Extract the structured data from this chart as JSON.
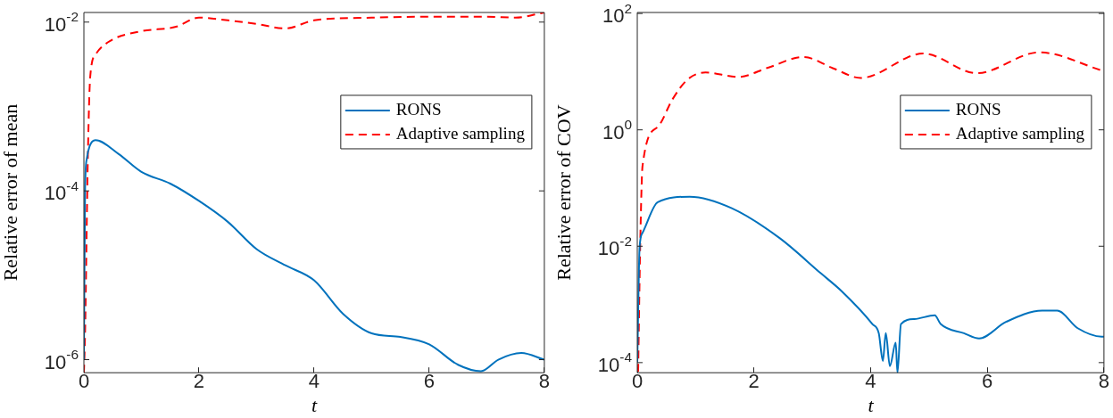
{
  "chart_data": [
    {
      "type": "line",
      "xlabel": "t",
      "ylabel": "Relative error of mean",
      "log": "y",
      "grid": false,
      "legend": "right",
      "marker": "none",
      "xlim": [
        0,
        8
      ],
      "xticks": [
        0,
        2,
        4,
        6,
        8
      ],
      "ylim": [
        7e-07,
        0.013
      ],
      "yticks": [
        {
          "value": 1e-06,
          "label": "10$^{-6}$"
        },
        {
          "value": 0.0001,
          "label": "10$^{-4}$"
        },
        {
          "value": 0.01,
          "label": "10$^{-2}$"
        }
      ],
      "series": [
        {
          "name": "RONS",
          "color": "#0072bd",
          "line_style": "solid",
          "x": [
            0,
            0.02,
            0.05,
            0.1,
            0.2,
            0.6,
            1.0,
            1.5,
            2.0,
            2.5,
            3.0,
            3.5,
            4.0,
            4.5,
            5.0,
            5.5,
            6.0,
            6.5,
            6.9,
            7.2,
            7.6,
            8.0
          ],
          "values": [
            1e-06,
            0.0001,
            0.00024,
            0.00034,
            0.0004,
            0.000275,
            0.000168,
            0.000122,
            7.6e-05,
            4.3e-05,
            2.04e-05,
            1.31e-05,
            8.7e-06,
            3.5e-06,
            2.05e-06,
            1.86e-06,
            1.52e-06,
            8.7e-07,
            7.3e-07,
            1e-06,
            1.2e-06,
            1e-06
          ]
        },
        {
          "name": "Adaptive sampling",
          "color": "#ff0000",
          "line_style": "dashed",
          "x": [
            0,
            0.02,
            0.07,
            0.11,
            0.21,
            0.48,
            1.0,
            1.6,
            2.0,
            2.5,
            3.0,
            3.5,
            4.0,
            5.0,
            6.0,
            7.0,
            7.5,
            8.0
          ],
          "values": [
            7e-07,
            2e-06,
            0.00028,
            0.00226,
            0.0042,
            0.0061,
            0.0078,
            0.0088,
            0.0113,
            0.0105,
            0.0095,
            0.0084,
            0.0105,
            0.0113,
            0.0116,
            0.0116,
            0.0113,
            0.013
          ]
        }
      ]
    },
    {
      "type": "line",
      "xlabel": "t",
      "ylabel": "Relative error of COV",
      "log": "y",
      "grid": false,
      "legend": "right",
      "marker": "none",
      "xlim": [
        0,
        8
      ],
      "xticks": [
        0,
        2,
        4,
        6,
        8
      ],
      "ylim": [
        6.7e-05,
        104
      ],
      "yticks": [
        {
          "value": 0.0001,
          "label": "10$^{-4}$"
        },
        {
          "value": 0.01,
          "label": "10$^{-2}$"
        },
        {
          "value": 1,
          "label": "10$^{0}$"
        },
        {
          "value": 100,
          "label": "10$^{2}$"
        }
      ],
      "series": [
        {
          "name": "RONS",
          "color": "#0072bd",
          "line_style": "solid",
          "x": [
            0,
            0.04,
            0.09,
            0.35,
            0.9,
            1.62,
            2.44,
            3.15,
            3.5,
            4.03,
            4.14,
            4.21,
            4.26,
            4.33,
            4.43,
            4.46,
            4.52,
            4.75,
            5.1,
            5.2,
            5.6,
            5.86,
            6.32,
            6.94,
            7.2,
            7.55,
            7.96,
            8.0
          ],
          "values": [
            0.0001,
            0.0096,
            0.017,
            0.057,
            0.071,
            0.045,
            0.0138,
            0.0034,
            0.0017,
            0.00046,
            0.00032,
            0.000107,
            0.00032,
            8.7e-05,
            0.00022,
            6.7e-05,
            0.00046,
            0.00056,
            0.00065,
            0.00046,
            0.00032,
            0.00026,
            0.0005,
            0.00078,
            0.00078,
            0.00039,
            0.00028,
            0.00028
          ]
        },
        {
          "name": "Adaptive sampling",
          "color": "#ff0000",
          "line_style": "dashed",
          "x": [
            0.015,
            0.05,
            0.09,
            0.35,
            0.6,
            0.86,
            1.17,
            1.73,
            2.24,
            2.85,
            3.35,
            3.83,
            4.9,
            5.82,
            6.89,
            7.96,
            8.0
          ],
          "values": [
            7e-05,
            0.01,
            0.24,
            1.12,
            3.3,
            7.3,
            9.7,
            8.1,
            11.7,
            17.9,
            11.5,
            7.8,
            20.5,
            9.4,
            21.5,
            10.5,
            10.2
          ]
        }
      ]
    }
  ]
}
